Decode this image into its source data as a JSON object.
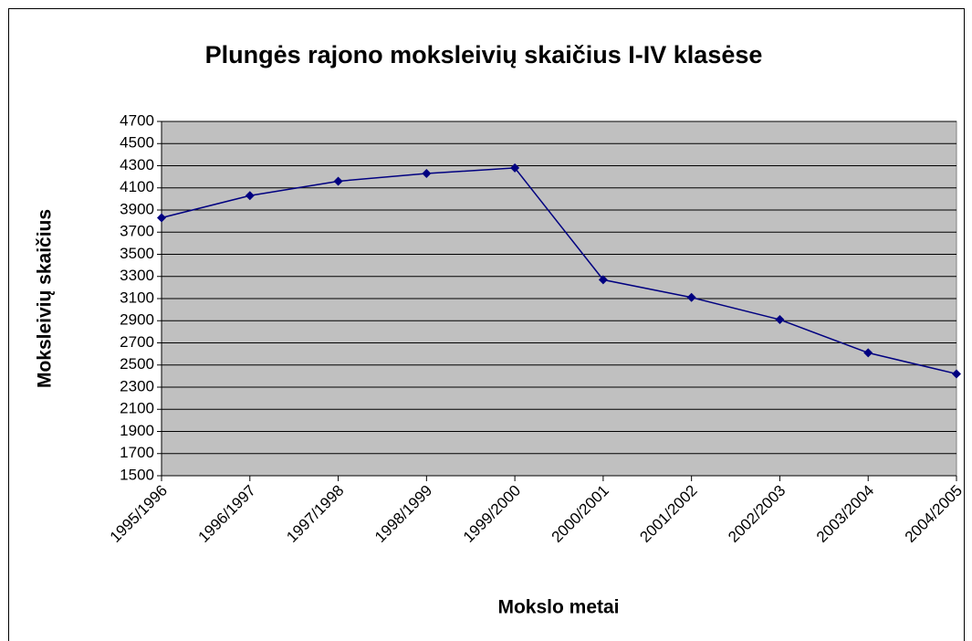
{
  "chart_data": {
    "type": "line",
    "title": "Plungės rajono moksleivių skaičius I-IV klasėse",
    "x_label": "Mokslo metai",
    "y_label": "Moksleivių skaičius",
    "categories": [
      "1995/1996",
      "1996/1997",
      "1997/1998",
      "1998/1999",
      "1999/2000",
      "2000/2001",
      "2001/2002",
      "2002/2003",
      "2003/2004",
      "2004/2005"
    ],
    "values": [
      3830,
      4030,
      4160,
      4230,
      4280,
      3270,
      3110,
      2910,
      2610,
      2420
    ],
    "color": "#000080",
    "ylim": [
      1500,
      4700
    ],
    "yticks": [
      1500,
      1700,
      1900,
      2100,
      2300,
      2500,
      2700,
      2900,
      3100,
      3300,
      3500,
      3700,
      3900,
      4100,
      4300,
      4500,
      4700
    ],
    "grid": true
  }
}
